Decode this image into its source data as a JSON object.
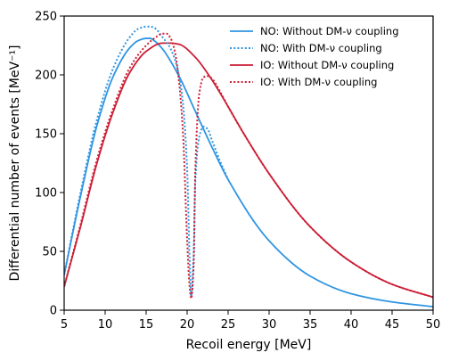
{
  "chart_data": {
    "type": "line",
    "title": "",
    "xlabel": "Recoil energy [MeV]",
    "ylabel": "Differential number of events [MeV⁻¹]",
    "xlim": [
      5,
      50
    ],
    "ylim": [
      0,
      250
    ],
    "xticks": [
      5,
      10,
      15,
      20,
      25,
      30,
      35,
      40,
      45,
      50
    ],
    "yticks": [
      0,
      50,
      100,
      150,
      200,
      250
    ],
    "grid": false,
    "legend_position": "top-right",
    "series": [
      {
        "name": "NO: Without DM-ν coupling",
        "color": "#2f95e2",
        "style": "solid",
        "x": [
          5,
          7,
          9,
          11,
          13,
          14,
          15,
          15.5,
          16,
          17,
          19,
          21,
          23,
          25,
          30,
          35,
          40,
          45,
          50
        ],
        "y": [
          30,
          97,
          157,
          199,
          223,
          229,
          231,
          231,
          229,
          222,
          199,
          169,
          139,
          111,
          59,
          29,
          14,
          7,
          3
        ]
      },
      {
        "name": "NO: With DM-ν coupling",
        "color": "#2f95e2",
        "style": "dotted",
        "x": [
          5,
          7,
          9,
          11,
          13,
          14,
          15,
          15.5,
          16,
          17,
          18,
          19,
          19.5,
          20,
          20.3,
          20.5,
          20.8,
          21,
          21.5,
          22,
          22.5,
          23,
          24,
          25
        ],
        "y": [
          30,
          100,
          162,
          206,
          232,
          239,
          241,
          241,
          240,
          232,
          222,
          200,
          175,
          120,
          45,
          12,
          48,
          110,
          148,
          156,
          154,
          145,
          127,
          111
        ]
      },
      {
        "name": "IO: Without DM-ν coupling",
        "color": "#cc1f36",
        "style": "solid",
        "x": [
          5,
          7,
          9,
          11,
          13,
          15,
          17,
          18,
          19,
          21,
          23,
          25,
          27,
          30,
          35,
          40,
          45,
          50
        ],
        "y": [
          20,
          71,
          125,
          169,
          202,
          220,
          227,
          227,
          226,
          215,
          196,
          173,
          149,
          116,
          71,
          41,
          22,
          11
        ]
      },
      {
        "name": "IO: With DM-ν coupling",
        "color": "#cc1f36",
        "style": "dotted",
        "x": [
          5,
          7,
          9,
          11,
          13,
          15,
          16,
          17,
          17.5,
          18,
          18.5,
          19,
          19.5,
          20,
          20.3,
          20.5,
          20.8,
          21,
          21.5,
          22,
          22.5,
          23,
          24,
          25,
          27,
          30,
          35,
          40,
          45,
          50
        ],
        "y": [
          20,
          73,
          128,
          172,
          206,
          225,
          231,
          235,
          235,
          231,
          220,
          195,
          150,
          60,
          20,
          10,
          40,
          120,
          185,
          198,
          199,
          197,
          186,
          173,
          149,
          116,
          71,
          41,
          22,
          11
        ]
      }
    ]
  }
}
